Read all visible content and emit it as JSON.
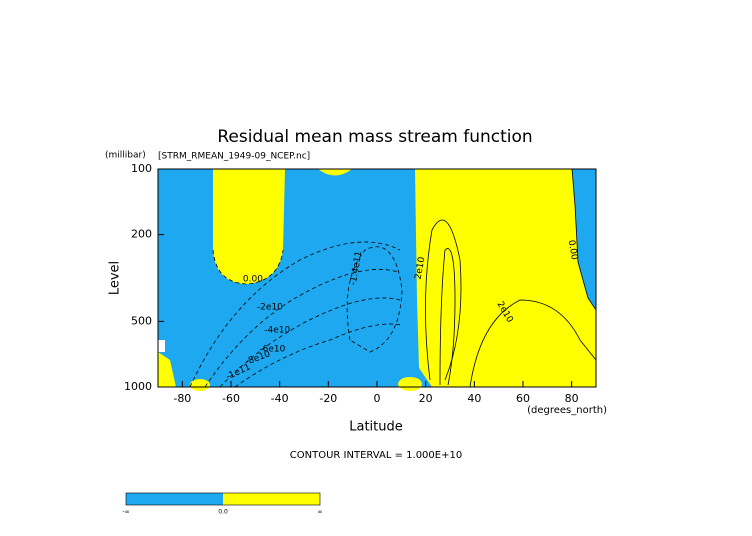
{
  "chart_data": {
    "type": "contour",
    "title": "Residual mean mass stream function",
    "subtitle": "[STRM_RMEAN_1949-09_NCEP.nc]",
    "x_label": "Latitude",
    "x_units": "(degrees_north)",
    "y_label": "Level",
    "y_units": "(millibar)",
    "xlim": [
      -90,
      90
    ],
    "xticks": [
      -80,
      -60,
      -40,
      -20,
      0,
      20,
      40,
      60,
      80
    ],
    "ylim": [
      1000,
      100
    ],
    "yticks": [
      100,
      200,
      500,
      1000
    ],
    "y_log": true,
    "fill_colors": [
      "#1ea8f0",
      "#ffff00"
    ],
    "contour_interval": "CONTOUR INTERVAL = 1.000E+10",
    "contour_labels": [
      {
        "text": "0.00",
        "x": -51,
        "y": 320
      },
      {
        "text": "-2e10",
        "x": -44,
        "y": 430
      },
      {
        "text": "-4e10",
        "x": -41,
        "y": 548
      },
      {
        "text": "-6e10",
        "x": -43,
        "y": 670
      },
      {
        "text": "-8e10",
        "x": -49,
        "y": 736
      },
      {
        "text": "-1e11",
        "x": -57,
        "y": 853
      },
      {
        "text": "-1.4e11",
        "x": -8.6,
        "y": 285
      },
      {
        "text": "2e10",
        "x": 17.7,
        "y": 285
      },
      {
        "text": "2e10",
        "x": 52.6,
        "y": 453
      },
      {
        "text": "0.00",
        "x": 80.5,
        "y": 235
      }
    ],
    "colorbar": {
      "labels": [
        "-∞",
        "0.0",
        "∞"
      ]
    }
  }
}
